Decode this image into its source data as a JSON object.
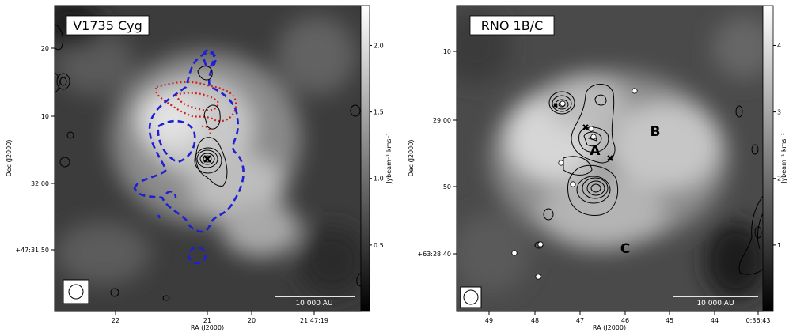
{
  "chart_data": [
    {
      "type": "heatmap",
      "title": "V1735 Cyg",
      "xlabel": "RA (J2000)",
      "ylabel": "Dec (J2000)",
      "colorbar_label": "Jybeam⁻¹ kms⁻¹",
      "x_ticks": [
        "22",
        "21",
        "20",
        "21:47:19"
      ],
      "y_ticks": [
        "20",
        "10",
        "32:00",
        "+47:31:50"
      ],
      "colorbar_ticks": [
        "0.5",
        "1.0",
        "1.5",
        "2.0"
      ],
      "colorbar_values": [
        0.5,
        1.0,
        1.5,
        2.0
      ],
      "colorbar_range": [
        0.0,
        2.3
      ],
      "scalebar_label": "10 000 AU",
      "colormap": "gray",
      "contour_colors": {
        "continuum": "#000000",
        "blueshifted": "#1f1fd6",
        "redshifted": "#d01f1f"
      },
      "markers": [
        {
          "symbol": "x",
          "label": ""
        }
      ]
    },
    {
      "type": "heatmap",
      "title": "RNO 1B/C",
      "xlabel": "RA (J2000)",
      "ylabel": "Dec (J2000)",
      "colorbar_label": "Jybeam⁻¹ kms⁻¹",
      "x_ticks": [
        "49",
        "48",
        "47",
        "46",
        "45",
        "44",
        "0:36:43"
      ],
      "y_ticks": [
        "10",
        "29:00",
        "50",
        "+63:28:40"
      ],
      "colorbar_ticks": [
        "1",
        "2",
        "3",
        "4"
      ],
      "colorbar_values": [
        1,
        2,
        3,
        4
      ],
      "colorbar_range": [
        0.0,
        4.6
      ],
      "scalebar_label": "10 000 AU",
      "colormap": "gray",
      "region_labels": [
        "A",
        "B",
        "C"
      ],
      "contour_colors": {
        "continuum": "#000000"
      },
      "markers": [
        {
          "symbol": "x",
          "count": 3
        },
        {
          "symbol": "o",
          "count": 9
        }
      ]
    }
  ]
}
